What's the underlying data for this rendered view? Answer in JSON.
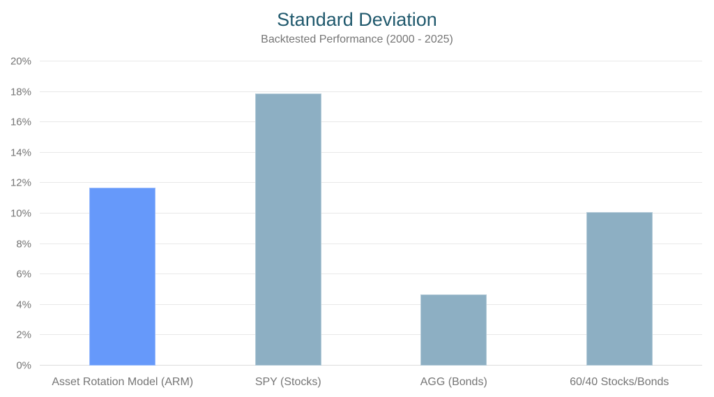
{
  "header": {
    "title": "Standard Deviation",
    "subtitle": "Backtested Performance (2000 - 2025)"
  },
  "colors": {
    "background": "#FFFFFF",
    "title_text": "#20596D",
    "subtitle_text": "#757575",
    "axis_label_text": "#757575",
    "gridline": "#E8E8E8",
    "baseline": "#DCDCDC",
    "highlight_bar": "#6699FA",
    "default_bar": "#8DAFC3"
  },
  "chart_data": {
    "type": "bar",
    "title": "Standard Deviation",
    "subtitle": "Backtested Performance (2000 - 2025)",
    "categories": [
      "Asset Rotation Model (ARM)",
      "SPY (Stocks)",
      "AGG (Bonds)",
      "60/40 Stocks/Bonds"
    ],
    "values": [
      11.7,
      17.9,
      4.7,
      10.1
    ],
    "unit": "%",
    "bar_colors": [
      "#6699FA",
      "#8DAFC3",
      "#8DAFC3",
      "#8DAFC3"
    ],
    "xlabel": "",
    "ylabel": "",
    "ylim": [
      0,
      20
    ],
    "ytick_step": 2,
    "ytick_labels": [
      "0%",
      "2%",
      "4%",
      "6%",
      "8%",
      "10%",
      "12%",
      "14%",
      "16%",
      "18%",
      "20%"
    ],
    "grid": true,
    "legend": false,
    "data_labels": false
  }
}
